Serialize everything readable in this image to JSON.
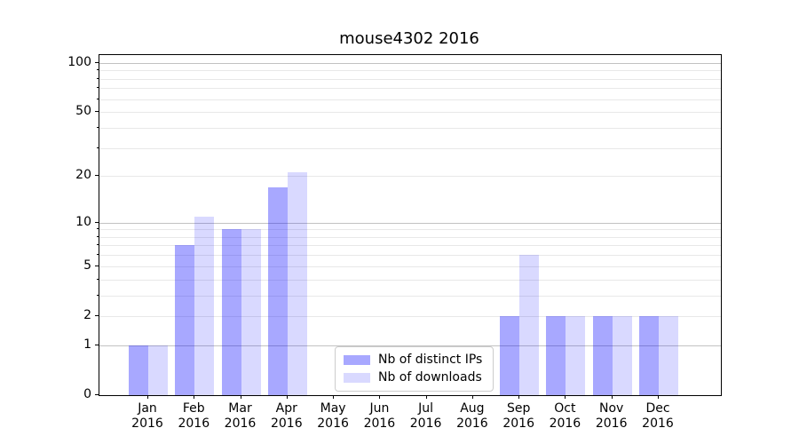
{
  "title": "mouse4302 2016",
  "chart_data": {
    "type": "bar",
    "title": "mouse4302 2016",
    "x": [
      "Jan 2016",
      "Feb 2016",
      "Mar 2016",
      "Apr 2016",
      "May 2016",
      "Jun 2016",
      "Jul 2016",
      "Aug 2016",
      "Sep 2016",
      "Oct 2016",
      "Nov 2016",
      "Dec 2016"
    ],
    "x_tick_line1": [
      "Jan",
      "Feb",
      "Mar",
      "Apr",
      "May",
      "Jun",
      "Jul",
      "Aug",
      "Sep",
      "Oct",
      "Nov",
      "Dec"
    ],
    "x_tick_line2": "2016",
    "series": [
      {
        "name": "Nb of distinct IPs",
        "color": "rgba(0,0,255,0.34)",
        "values": [
          1,
          7,
          9,
          17,
          0,
          0,
          0,
          0,
          2,
          2,
          2,
          2
        ]
      },
      {
        "name": "Nb of downloads",
        "color": "rgba(0,0,255,0.15)",
        "values": [
          1,
          11,
          9,
          21,
          0,
          0,
          0,
          0,
          6,
          2,
          2,
          2
        ]
      }
    ],
    "y_scale": "log10(value+1)",
    "y_tick_values": [
      0,
      1,
      2,
      5,
      10,
      20,
      50,
      100
    ],
    "y_decade_grid_values": [
      1,
      10,
      100
    ],
    "y_minor_grid_values": [
      3,
      4,
      6,
      7,
      8,
      9,
      30,
      40,
      60,
      70,
      80,
      90
    ],
    "ylim": [
      0,
      112
    ],
    "grid": true,
    "legend_position": "lower center"
  },
  "colors": {
    "bar_ips": "rgba(0,0,255,0.34)",
    "bar_downloads": "rgba(0,0,255,0.15)",
    "grid_decade": "#c2c2c2",
    "grid_minor": "#e8e8e8",
    "spine": "#000000",
    "legend_border": "#cccccc",
    "background": "#ffffff"
  }
}
